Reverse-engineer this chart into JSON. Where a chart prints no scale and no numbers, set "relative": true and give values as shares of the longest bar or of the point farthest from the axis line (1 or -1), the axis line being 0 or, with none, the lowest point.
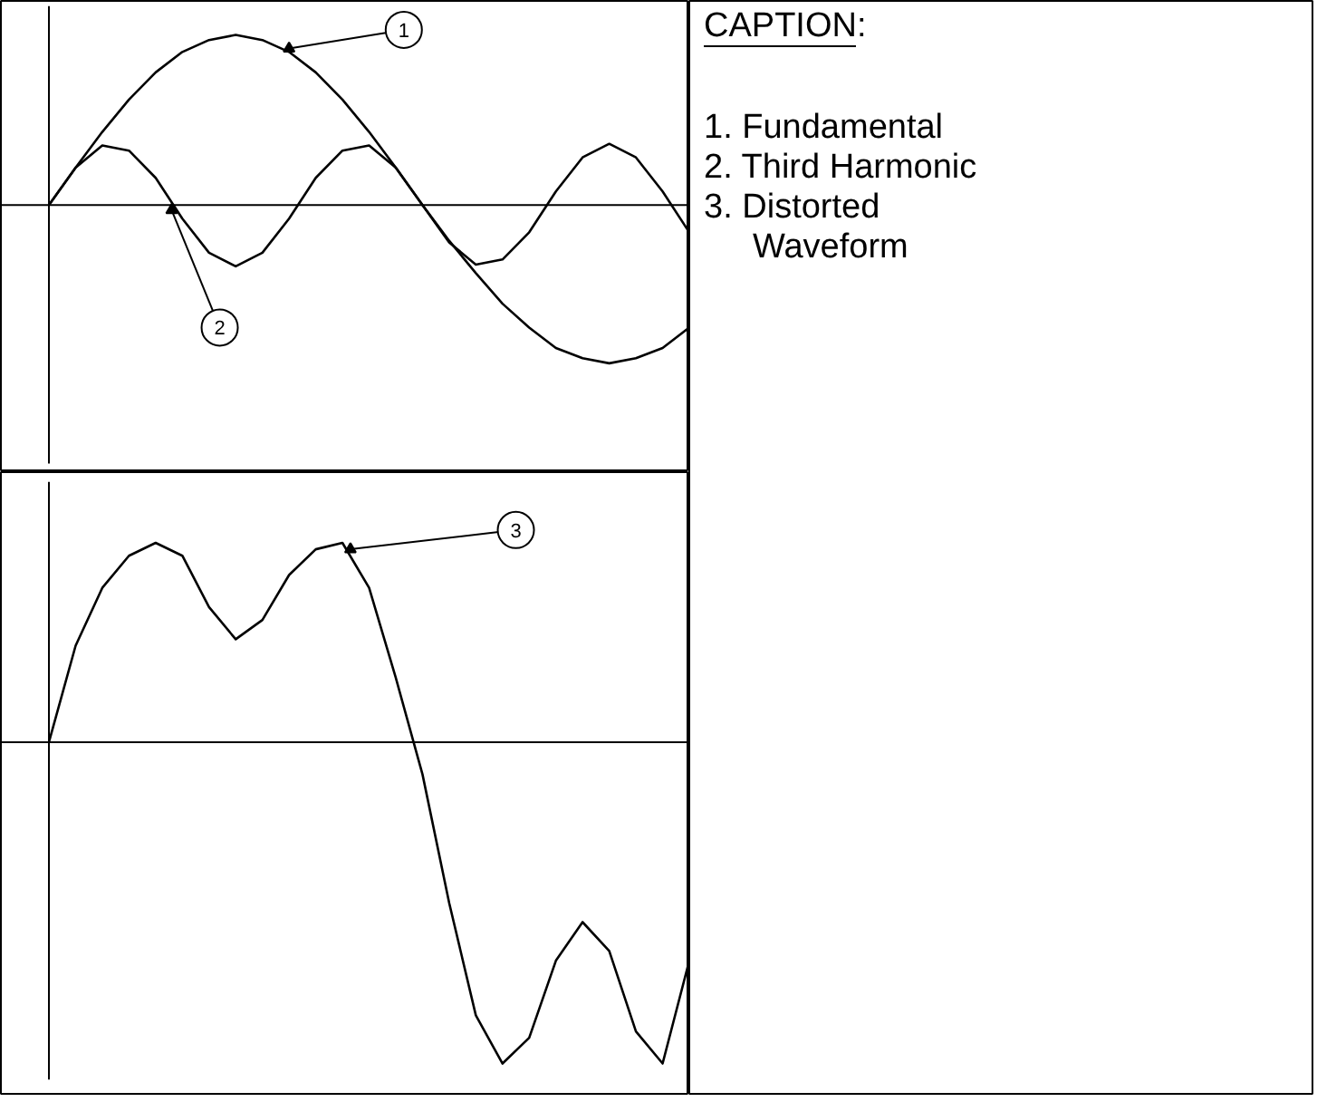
{
  "chart_data": [
    {
      "type": "line",
      "relative": true,
      "categories": [
        null,
        null,
        null,
        null,
        null,
        null,
        null,
        null,
        null,
        null,
        null,
        null,
        null,
        null,
        null,
        null,
        null,
        null,
        null,
        null,
        null,
        null,
        null,
        null,
        null
      ],
      "series": [
        {
          "color": "#000000",
          "values": [
            0,
            0.22,
            0.43,
            0.62,
            0.78,
            0.9,
            0.97,
            1.0,
            0.97,
            0.9,
            0.78,
            0.62,
            0.43,
            0.22,
            0,
            -0.21,
            -0.4,
            -0.58,
            -0.72,
            -0.84,
            -0.9,
            -0.93,
            -0.9,
            -0.84,
            -0.72
          ]
        },
        {
          "color": "#000000",
          "values": [
            0,
            0.22,
            0.35,
            0.32,
            0.16,
            -0.08,
            -0.28,
            -0.36,
            -0.28,
            -0.08,
            0.16,
            0.32,
            0.35,
            0.22,
            0,
            -0.22,
            -0.35,
            -0.32,
            -0.16,
            0.08,
            0.28,
            0.36,
            0.28,
            0.08,
            -0.16
          ]
        }
      ],
      "annotations": [
        "1",
        "2"
      ],
      "tick_labels": false
    },
    {
      "type": "line",
      "relative": true,
      "categories": [
        null,
        null,
        null,
        null,
        null,
        null,
        null,
        null,
        null,
        null,
        null,
        null,
        null,
        null,
        null,
        null,
        null,
        null,
        null,
        null,
        null,
        null,
        null,
        null,
        null
      ],
      "series": [
        {
          "color": "#000000",
          "values": [
            0,
            0.3,
            0.48,
            0.58,
            0.62,
            0.58,
            0.42,
            0.32,
            0.38,
            0.52,
            0.6,
            0.62,
            0.48,
            0.2,
            -0.1,
            -0.5,
            -0.85,
            -1.0,
            -0.92,
            -0.68,
            -0.56,
            -0.65,
            -0.9,
            -1.0,
            -0.68
          ]
        }
      ],
      "annotations": [
        "3"
      ],
      "tick_labels": false
    },
    {
      "type": "other",
      "title": "CAPTION:",
      "annotations": [
        "1.  Fundamental",
        "2.  Third Harmonic",
        "3.  Distorted",
        "Waveform"
      ]
    }
  ]
}
